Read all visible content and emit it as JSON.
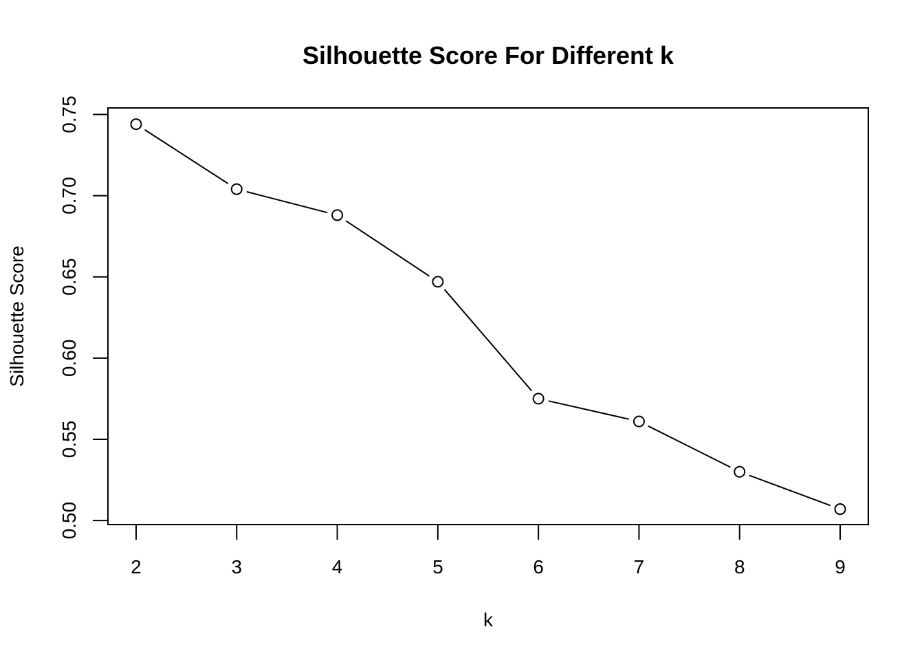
{
  "chart_data": {
    "type": "line",
    "title": "Silhouette Score For Different k",
    "xlabel": "k",
    "ylabel": "Silhouette Score",
    "x": [
      2,
      3,
      4,
      5,
      6,
      7,
      8,
      9
    ],
    "values": [
      0.744,
      0.704,
      0.688,
      0.647,
      0.575,
      0.561,
      0.53,
      0.507
    ],
    "xticks": [
      "2",
      "3",
      "4",
      "5",
      "6",
      "7",
      "8",
      "9"
    ],
    "yticks": [
      "0.50",
      "0.55",
      "0.60",
      "0.65",
      "0.70",
      "0.75"
    ],
    "xlim": [
      1.72,
      9.28
    ],
    "ylim": [
      0.4975,
      0.754
    ],
    "grid": false,
    "legend": "none",
    "marker": "open-circle",
    "line_color": "#000000"
  }
}
